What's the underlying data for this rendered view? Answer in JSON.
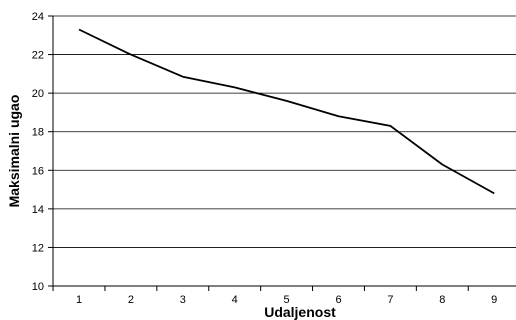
{
  "chart_data": {
    "type": "line",
    "title": "",
    "xlabel": "Udaljenost",
    "ylabel": "Maksimalni ugao",
    "x": [
      1,
      2,
      3,
      4,
      5,
      6,
      7,
      8,
      9
    ],
    "series": [
      {
        "values": [
          23.3,
          22.0,
          20.85,
          20.3,
          19.6,
          18.8,
          18.3,
          16.3,
          14.8
        ]
      }
    ],
    "ylim": [
      10,
      24
    ],
    "yticks": [
      10,
      12,
      14,
      16,
      18,
      20,
      22,
      24
    ],
    "xticks": [
      1,
      2,
      3,
      4,
      5,
      6,
      7,
      8,
      9
    ],
    "grid": "horizontal",
    "legend": "none",
    "line_color": "#000000",
    "grid_color": "#000000"
  }
}
